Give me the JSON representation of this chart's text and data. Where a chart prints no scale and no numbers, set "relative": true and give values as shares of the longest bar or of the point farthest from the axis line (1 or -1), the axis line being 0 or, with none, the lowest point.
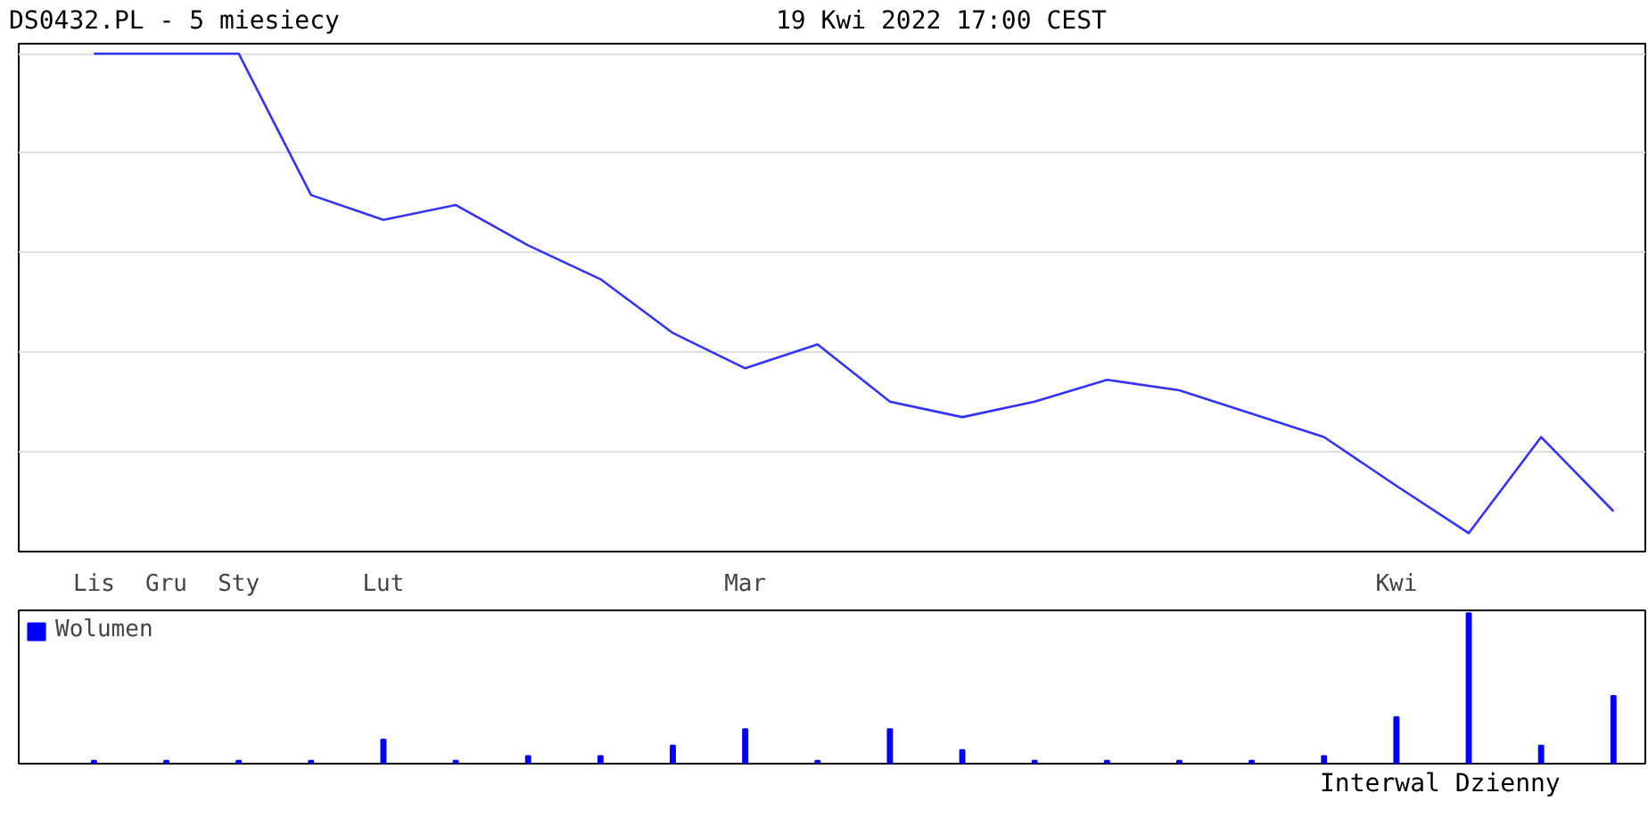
{
  "chart_data": [
    {
      "type": "line",
      "title": "DS0432.PL - 5 miesiecy",
      "subtitle": "19 Kwi 2022 17:00 CEST",
      "relative": true,
      "grid": "y",
      "legend": false,
      "categories": [
        "Lis",
        "Gru",
        "Sty",
        null,
        "Lut",
        null,
        null,
        null,
        null,
        "Mar",
        null,
        null,
        null,
        null,
        null,
        null,
        null,
        null,
        "Kwi",
        null,
        null,
        null
      ],
      "series": [
        {
          "color": "#3333ff",
          "values": [
            1,
            1,
            1,
            0.716,
            0.666,
            0.696,
            0.615,
            0.547,
            0.439,
            0.368,
            0.416,
            0.301,
            0.27,
            0.301,
            0.345,
            0.324,
            0.277,
            0.23,
            0.132,
            0.037,
            0.23,
            0.081
          ]
        }
      ]
    },
    {
      "type": "bar",
      "relative": true,
      "tick_labels": false,
      "legend": "top left",
      "annotations": [
        "Interwal Dzienny"
      ],
      "categories": [
        null,
        null,
        null,
        null,
        null,
        null,
        null,
        null,
        null,
        null,
        null,
        null,
        null,
        null,
        null,
        null,
        null,
        null,
        null,
        null,
        null,
        null
      ],
      "series": [
        {
          "name": "Wolumen",
          "color": "#0000ff",
          "values": [
            0.02,
            0.02,
            0.02,
            0.02,
            0.16,
            0.02,
            0.05,
            0.05,
            0.12,
            0.23,
            0.02,
            0.23,
            0.09,
            0.02,
            0.02,
            0.02,
            0.02,
            0.05,
            0.31,
            1,
            0.12,
            0.45
          ]
        }
      ]
    }
  ]
}
